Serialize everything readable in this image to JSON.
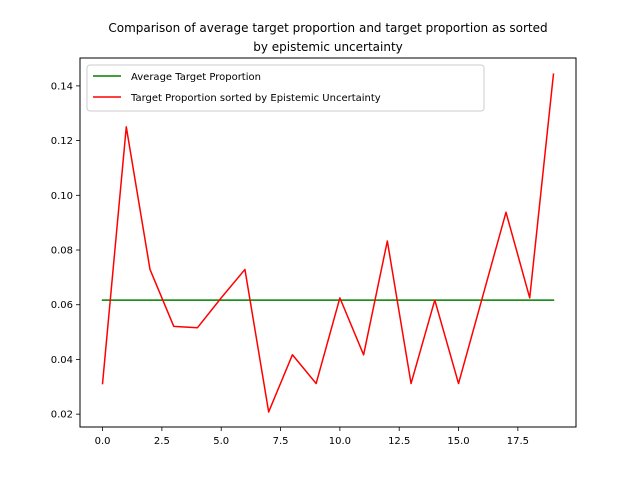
{
  "chart_data": {
    "type": "line",
    "title": "Comparison of average target proportion and target proportion as sorted\nby epistemic uncertainty",
    "title_lines": [
      "Comparison of average target proportion and target proportion as sorted",
      "by epistemic uncertainty"
    ],
    "xlabel": "",
    "ylabel": "",
    "xlim": [
      -0.95,
      19.95
    ],
    "ylim": [
      0.0153,
      0.1502
    ],
    "xticks": [
      0.0,
      2.5,
      5.0,
      7.5,
      10.0,
      12.5,
      15.0,
      17.5
    ],
    "xtick_labels": [
      "0.0",
      "2.5",
      "5.0",
      "7.5",
      "10.0",
      "12.5",
      "15.0",
      "17.5"
    ],
    "yticks": [
      0.02,
      0.04,
      0.06,
      0.08,
      0.1,
      0.12,
      0.14
    ],
    "ytick_labels": [
      "0.02",
      "0.04",
      "0.06",
      "0.08",
      "0.10",
      "0.12",
      "0.14"
    ],
    "grid": false,
    "legend_position": "upper-left",
    "series": [
      {
        "name": "Average Target Proportion",
        "color": "#008000",
        "x": [
          0,
          19
        ],
        "y": [
          0.0617,
          0.0617
        ]
      },
      {
        "name": "Target Proportion sorted by Epistemic Uncertainty",
        "color": "#ff0000",
        "x": [
          0,
          1,
          2,
          3,
          4,
          5,
          6,
          7,
          8,
          9,
          10,
          11,
          12,
          13,
          14,
          15,
          16,
          17,
          18,
          19
        ],
        "y": [
          0.0312,
          0.125,
          0.0729,
          0.0521,
          0.0516,
          0.0625,
          0.0729,
          0.0208,
          0.0417,
          0.0312,
          0.0625,
          0.0417,
          0.0833,
          0.0312,
          0.0617,
          0.0312,
          0.0625,
          0.0938,
          0.0625,
          0.1443
        ]
      }
    ]
  }
}
